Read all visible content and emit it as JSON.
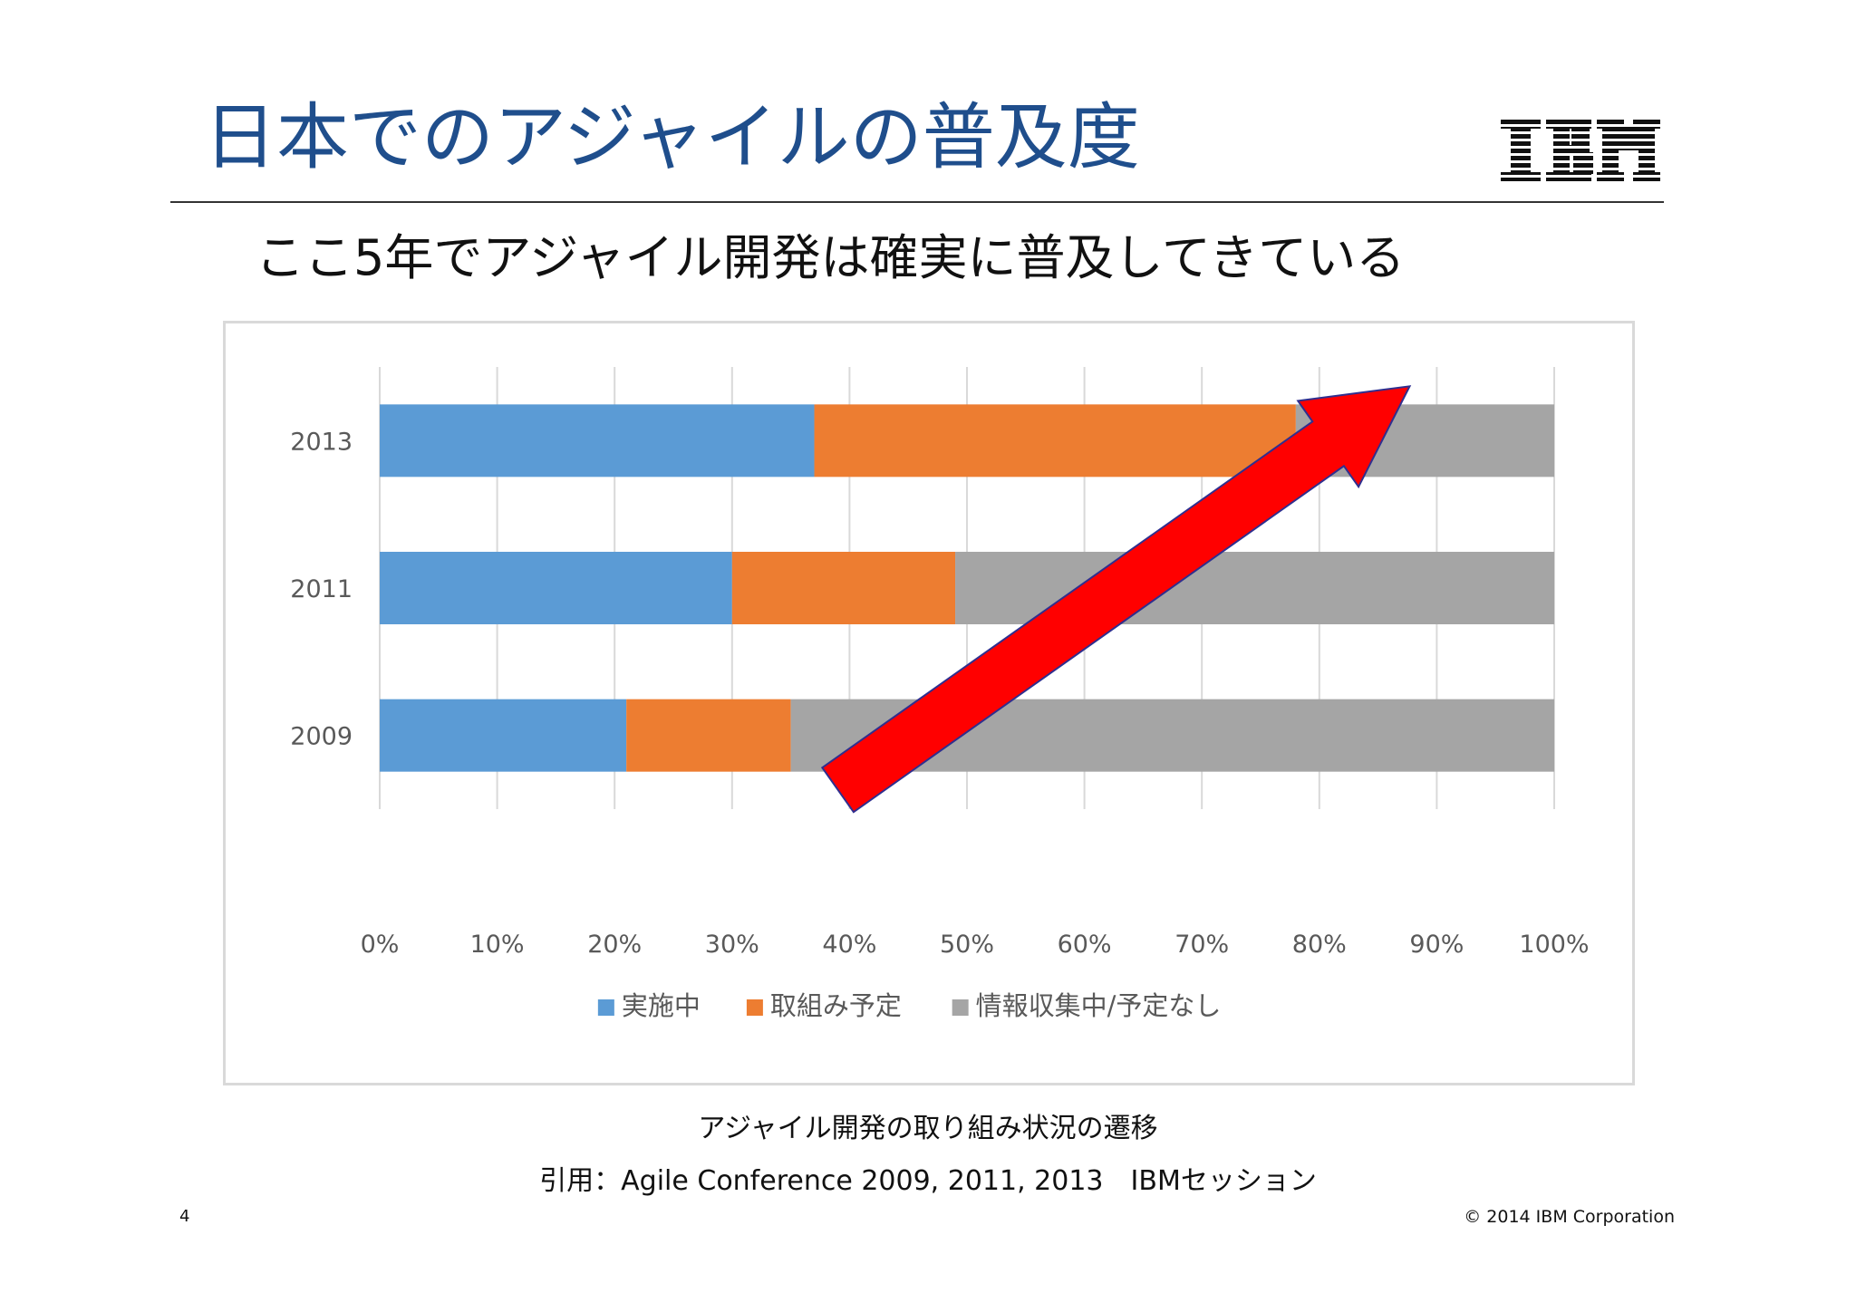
{
  "slide": {
    "title": "日本でのアジャイルの普及度",
    "subtitle": "ここ5年でアジャイル開発は確実に普及してきている",
    "logo_text": "IBM",
    "caption": "アジャイル開発の取り組み状況の遷移",
    "citation": "引用：Agile Conference 2009, 2011, 2013　IBMセッション",
    "page_number": "4",
    "copyright": "© 2014 IBM Corporation"
  },
  "colors": {
    "title": "#1f4e8c",
    "implemented": "#5b9bd5",
    "planned": "#ed7d31",
    "researching": "#a5a5a5",
    "arrow_fill": "#ff0000",
    "arrow_stroke": "#2f2f8f"
  },
  "chart_data": {
    "type": "bar",
    "orientation": "horizontal",
    "stacked": "100%",
    "categories": [
      "2013",
      "2011",
      "2009"
    ],
    "series": [
      {
        "name": "実施中",
        "values": [
          37,
          30,
          21
        ],
        "color": "#5b9bd5"
      },
      {
        "name": "取組み予定",
        "values": [
          41,
          19,
          14
        ],
        "color": "#ed7d31"
      },
      {
        "name": "情報収集中/予定なし",
        "values": [
          22,
          51,
          65
        ],
        "color": "#a5a5a5"
      }
    ],
    "x_ticks": [
      "0%",
      "10%",
      "20%",
      "30%",
      "40%",
      "50%",
      "60%",
      "70%",
      "80%",
      "90%",
      "100%"
    ],
    "xlim": [
      0,
      100
    ],
    "grid": true,
    "legend": "bottom",
    "annotation": {
      "type": "arrow",
      "from": [
        35,
        "2009"
      ],
      "to": [
        88,
        "2013"
      ],
      "color": "#ff0000"
    }
  }
}
